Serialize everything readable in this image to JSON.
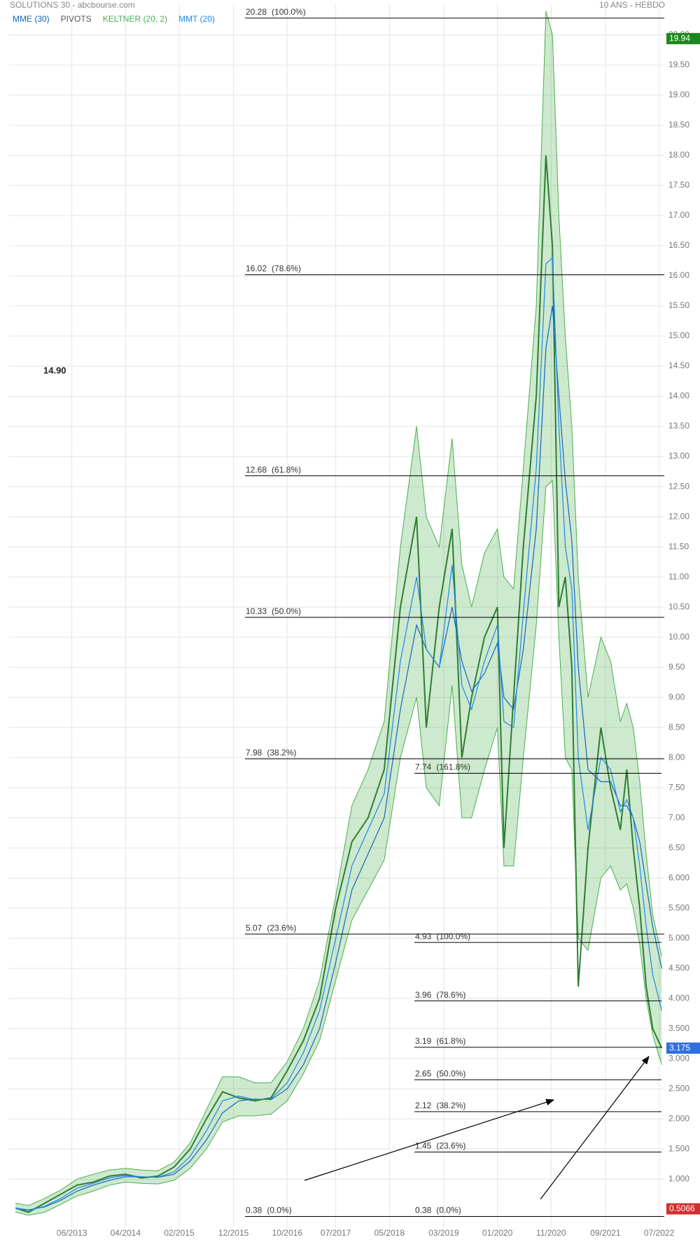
{
  "chart_data": {
    "type": "line",
    "title": "SOLUTIONS 30 - abcbourse.com",
    "subtitle": "10 ANS - HEBDO",
    "annotation": "14.90",
    "x": [
      2012.55,
      2012.75,
      2013.0,
      2013.25,
      2013.5,
      2013.75,
      2014.0,
      2014.25,
      2014.5,
      2014.75,
      2015.0,
      2015.25,
      2015.5,
      2015.75,
      2016.0,
      2016.25,
      2016.5,
      2016.75,
      2017.0,
      2017.25,
      2017.5,
      2017.75,
      2018.0,
      2018.25,
      2018.5,
      2018.75,
      2018.9,
      2019.1,
      2019.3,
      2019.45,
      2019.6,
      2019.8,
      2020.0,
      2020.1,
      2020.25,
      2020.4,
      2020.6,
      2020.75,
      2020.85,
      2020.95,
      2021.05,
      2021.15,
      2021.25,
      2021.4,
      2021.6,
      2021.75,
      2021.9,
      2022.0,
      2022.1,
      2022.2,
      2022.3,
      2022.4,
      2022.54
    ],
    "series": [
      {
        "color": "#2e7d32",
        "values": [
          0.52,
          0.45,
          0.6,
          0.75,
          0.9,
          0.95,
          1.05,
          1.08,
          1.02,
          1.05,
          1.2,
          1.5,
          2.0,
          2.45,
          2.35,
          2.3,
          2.35,
          2.8,
          3.3,
          4.0,
          5.5,
          6.6,
          7.0,
          7.8,
          10.5,
          12.0,
          8.5,
          10.5,
          11.8,
          8.0,
          9.0,
          10.0,
          10.5,
          6.5,
          9.0,
          11.5,
          14.0,
          18.0,
          16.5,
          10.5,
          11.0,
          9.5,
          4.2,
          6.5,
          8.5,
          7.5,
          6.8,
          7.8,
          6.5,
          5.5,
          4.2,
          3.5,
          3.175
        ]
      },
      {
        "name": "MME (30)",
        "color": "#1565c0",
        "values": [
          0.52,
          0.49,
          0.54,
          0.65,
          0.8,
          0.9,
          0.98,
          1.04,
          1.04,
          1.03,
          1.08,
          1.3,
          1.65,
          2.1,
          2.3,
          2.33,
          2.32,
          2.5,
          2.9,
          3.5,
          4.6,
          5.8,
          6.4,
          7.0,
          8.8,
          10.2,
          9.8,
          9.5,
          10.5,
          9.6,
          9.1,
          9.4,
          9.9,
          9.0,
          8.8,
          9.8,
          11.8,
          14.8,
          15.5,
          14.0,
          12.6,
          11.6,
          9.5,
          7.8,
          7.6,
          7.6,
          7.2,
          7.2,
          7.0,
          6.6,
          5.9,
          5.2,
          4.5
        ]
      },
      {
        "name": "PIVOTS",
        "color": "#555555"
      },
      {
        "name": "KELTNER (20, 2)",
        "color": "#4caf50",
        "upper": [
          0.6,
          0.56,
          0.68,
          0.82,
          1.0,
          1.08,
          1.15,
          1.18,
          1.15,
          1.14,
          1.28,
          1.6,
          2.15,
          2.7,
          2.7,
          2.6,
          2.6,
          2.95,
          3.5,
          4.3,
          5.7,
          7.2,
          7.8,
          8.6,
          11.5,
          13.5,
          12.0,
          11.5,
          13.3,
          11.2,
          10.5,
          11.4,
          11.8,
          11.0,
          10.8,
          12.8,
          15.5,
          20.4,
          20.0,
          17.0,
          15.0,
          13.5,
          11.0,
          9.0,
          10.0,
          9.6,
          8.6,
          8.9,
          8.5,
          7.6,
          6.4,
          5.4,
          4.7
        ],
        "lower": [
          0.45,
          0.4,
          0.45,
          0.58,
          0.72,
          0.8,
          0.9,
          0.95,
          0.93,
          0.92,
          0.98,
          1.18,
          1.5,
          1.95,
          2.05,
          2.05,
          2.08,
          2.3,
          2.75,
          3.3,
          4.3,
          5.3,
          5.8,
          6.3,
          8.0,
          9.0,
          7.5,
          7.2,
          9.2,
          7.0,
          7.0,
          7.8,
          8.5,
          6.2,
          6.2,
          8.0,
          10.2,
          12.5,
          12.6,
          10.0,
          8.0,
          7.8,
          5.0,
          4.8,
          6.0,
          6.2,
          5.8,
          5.9,
          5.5,
          4.9,
          4.0,
          3.4,
          2.9
        ]
      },
      {
        "name": "MMT (20)",
        "color": "#1e88e5",
        "values": [
          0.52,
          0.48,
          0.55,
          0.68,
          0.85,
          0.93,
          1.02,
          1.06,
          1.04,
          1.03,
          1.12,
          1.38,
          1.8,
          2.3,
          2.38,
          2.32,
          2.33,
          2.6,
          3.1,
          3.8,
          5.0,
          6.2,
          6.8,
          7.4,
          9.6,
          11.0,
          9.8,
          9.5,
          11.2,
          9.2,
          8.8,
          9.6,
          10.2,
          8.6,
          8.5,
          10.4,
          12.8,
          16.2,
          16.3,
          13.5,
          11.5,
          10.8,
          8.0,
          6.8,
          8.0,
          7.8,
          7.1,
          7.3,
          7.0,
          6.2,
          5.2,
          4.4,
          3.8
        ]
      }
    ],
    "fib_retracement": [
      {
        "value": 20.28,
        "pct": "(100.0%)"
      },
      {
        "value": 16.02,
        "pct": "(78.6%)"
      },
      {
        "value": 12.68,
        "pct": "(61.8%)"
      },
      {
        "value": 10.33,
        "pct": "(50.0%)"
      },
      {
        "value": 7.98,
        "pct": "(38.2%)"
      },
      {
        "value": 5.07,
        "pct": "(23.6%)"
      },
      {
        "value": 0.38,
        "pct": "(0.0%)"
      }
    ],
    "fib_extension": [
      {
        "value": 7.74,
        "pct": "(161.8%)"
      },
      {
        "value": 4.93,
        "pct": "(100.0%)"
      },
      {
        "value": 3.96,
        "pct": "(78.6%)"
      },
      {
        "value": 3.19,
        "pct": "(61.8%)"
      },
      {
        "value": 2.65,
        "pct": "(50.0%)"
      },
      {
        "value": 2.12,
        "pct": "(38.2%)"
      },
      {
        "value": 1.45,
        "pct": "(23.6%)"
      },
      {
        "value": 0.38,
        "pct": "(0.0%)"
      }
    ],
    "price_tags": [
      {
        "value": 19.94,
        "color": "#1b8a1b"
      },
      {
        "value": 3.175,
        "color": "#2f6fe0"
      },
      {
        "value": 0.5066,
        "color": "#d32f2f"
      }
    ],
    "xlim": [
      2012.45,
      2022.58
    ],
    "ylim": [
      0.2,
      20.5
    ],
    "xticks": [
      {
        "value": 2013.42,
        "label": "06/2013"
      },
      {
        "value": 2014.25,
        "label": "04/2014"
      },
      {
        "value": 2015.08,
        "label": "02/2015"
      },
      {
        "value": 2015.92,
        "label": "12/2015"
      },
      {
        "value": 2016.75,
        "label": "10/2016"
      },
      {
        "value": 2017.5,
        "label": "07/2017"
      },
      {
        "value": 2018.33,
        "label": "05/2018"
      },
      {
        "value": 2019.17,
        "label": "03/2019"
      },
      {
        "value": 2020.0,
        "label": "01/2020"
      },
      {
        "value": 2020.83,
        "label": "11/2020"
      },
      {
        "value": 2021.67,
        "label": "09/2021"
      },
      {
        "value": 2022.5,
        "label": "07/2022"
      }
    ],
    "yticks": [
      {
        "value": 1,
        "label": "1.000"
      },
      {
        "value": 1.5,
        "label": "1.500"
      },
      {
        "value": 2,
        "label": "2.000"
      },
      {
        "value": 2.5,
        "label": "2.500"
      },
      {
        "value": 3,
        "label": "3.000"
      },
      {
        "value": 3.5,
        "label": "3.500"
      },
      {
        "value": 4,
        "label": "4.000"
      },
      {
        "value": 4.5,
        "label": "4.500"
      },
      {
        "value": 5,
        "label": "5.000"
      },
      {
        "value": 5.5,
        "label": "5.500"
      },
      {
        "value": 6,
        "label": "6.000"
      },
      {
        "value": 6.5,
        "label": "6.50"
      },
      {
        "value": 7,
        "label": "7.00"
      },
      {
        "value": 7.5,
        "label": "7.50"
      },
      {
        "value": 8,
        "label": "8.00"
      },
      {
        "value": 8.5,
        "label": "8.50"
      },
      {
        "value": 9,
        "label": "9.00"
      },
      {
        "value": 9.5,
        "label": "9.50"
      },
      {
        "value": 10,
        "label": "10.00"
      },
      {
        "value": 10.5,
        "label": "10.50"
      },
      {
        "value": 11,
        "label": "11.00"
      },
      {
        "value": 11.5,
        "label": "11.50"
      },
      {
        "value": 12,
        "label": "12.00"
      },
      {
        "value": 12.5,
        "label": "12.50"
      },
      {
        "value": 13,
        "label": "13.00"
      },
      {
        "value": 13.5,
        "label": "13.50"
      },
      {
        "value": 14,
        "label": "14.00"
      },
      {
        "value": 14.5,
        "label": "14.50"
      },
      {
        "value": 15,
        "label": "15.00"
      },
      {
        "value": 15.5,
        "label": "15.50"
      },
      {
        "value": 16,
        "label": "16.00"
      },
      {
        "value": 16.5,
        "label": "16.50"
      },
      {
        "value": 17,
        "label": "17.00"
      },
      {
        "value": 17.5,
        "label": "17.50"
      },
      {
        "value": 18,
        "label": "18.00"
      },
      {
        "value": 18.5,
        "label": "18.50"
      },
      {
        "value": 19,
        "label": "19.00"
      },
      {
        "value": 19.5,
        "label": "19.50"
      },
      {
        "value": 20,
        "label": "20.00"
      }
    ],
    "grid": true
  }
}
